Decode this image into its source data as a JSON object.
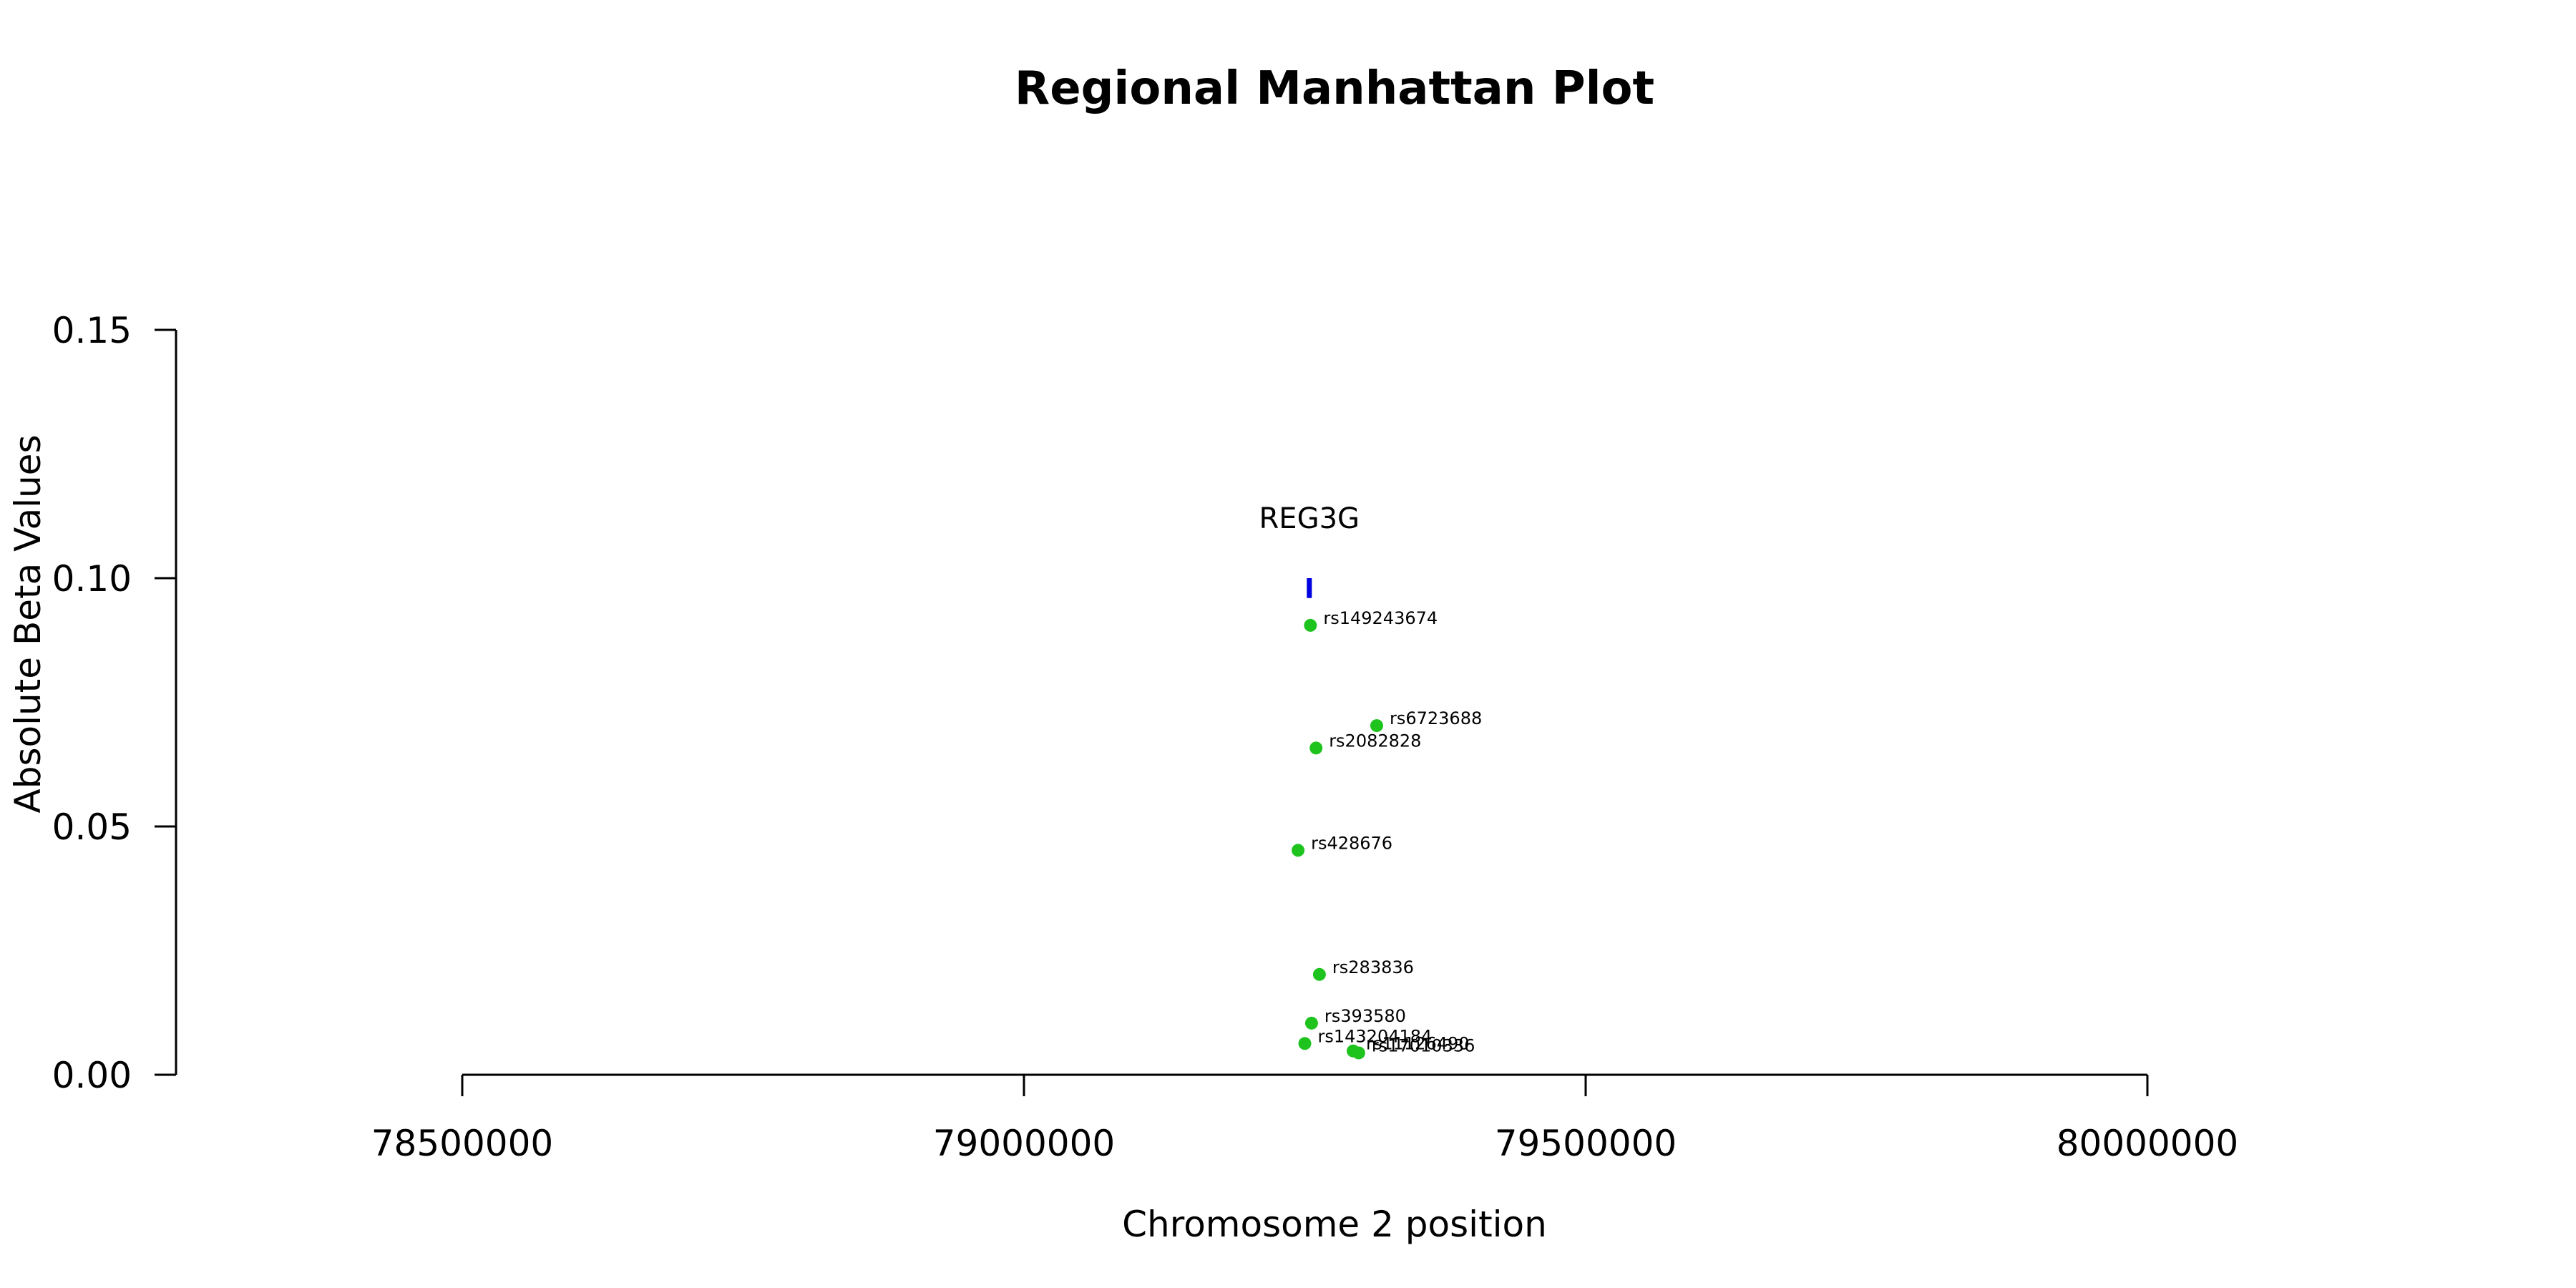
{
  "chart_data": {
    "type": "scatter",
    "title": "Regional Manhattan Plot",
    "xlabel": "Chromosome 2 position",
    "ylabel": "Absolute Beta Values",
    "xlim": [
      78500000,
      80000000
    ],
    "ylim": [
      0,
      0.15
    ],
    "x_ticks": [
      78500000,
      79000000,
      79500000,
      80000000
    ],
    "x_tick_labels": [
      "78500000",
      "79000000",
      "79500000",
      "80000000"
    ],
    "y_ticks": [
      0,
      0.05,
      0.1,
      0.15
    ],
    "y_tick_labels": [
      "0.00",
      "0.05",
      "0.10",
      "0.15"
    ],
    "grid": false,
    "point_color": "#1ec31e",
    "gene_color": "#0000e0",
    "gene": {
      "name": "REG3G",
      "start": 79252000,
      "end": 79256000,
      "y_low": 0.096,
      "y_high": 0.1
    },
    "points": [
      {
        "label": "rs149243674",
        "x": 79255000,
        "y": 0.0905
      },
      {
        "label": "rs6723688",
        "x": 79314000,
        "y": 0.0703
      },
      {
        "label": "rs2082828",
        "x": 79260000,
        "y": 0.0658
      },
      {
        "label": "rs428676",
        "x": 79244000,
        "y": 0.0452
      },
      {
        "label": "rs283836",
        "x": 79263000,
        "y": 0.0202
      },
      {
        "label": "rs393580",
        "x": 79256000,
        "y": 0.0104
      },
      {
        "label": "rs143204184",
        "x": 79250000,
        "y": 0.0063
      },
      {
        "label": "rs11126490",
        "x": 79293000,
        "y": 0.0048
      },
      {
        "label": "rs17010336",
        "x": 79298000,
        "y": 0.0044
      }
    ]
  }
}
